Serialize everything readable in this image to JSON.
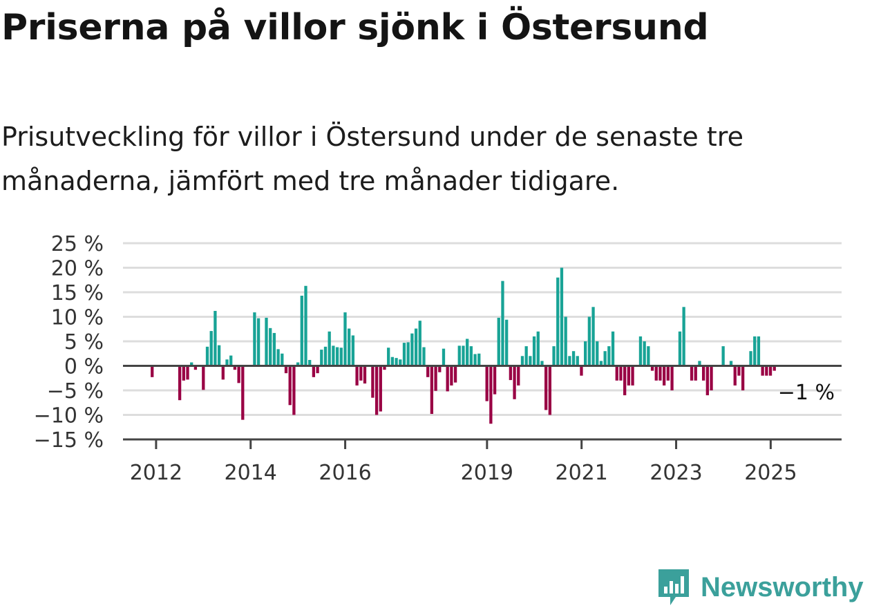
{
  "title": "Priserna på villor sjönk i Östersund",
  "subtitle": "Prisutveckling för villor i Östersund under de senaste tre månaderna, jämfört med tre månader tidigare.",
  "brand": {
    "name": "Newsworthy",
    "logo_icon": "newsworthy-bar-chart-logo-icon"
  },
  "colors": {
    "positive": "#18a396",
    "negative": "#990044",
    "grid": "#dddddd",
    "zero_line": "#444444",
    "brand": "#3ba09b"
  },
  "chart_data": {
    "type": "bar",
    "title": "",
    "xlabel": "",
    "ylabel": "",
    "ylim": [
      -15,
      25
    ],
    "yticks": [
      25,
      20,
      15,
      10,
      5,
      0,
      -5,
      -10,
      -15
    ],
    "ytick_labels": [
      "25 %",
      "20 %",
      "15 %",
      "10 %",
      "5 %",
      "0 %",
      "−5 %",
      "−10 %",
      "−15 %"
    ],
    "xticks": [
      {
        "x": 2012.0,
        "label": "2012"
      },
      {
        "x": 2014.0,
        "label": "2014"
      },
      {
        "x": 2016.0,
        "label": "2016"
      },
      {
        "x": 2019.0,
        "label": "2019"
      },
      {
        "x": 2021.0,
        "label": "2021"
      },
      {
        "x": 2023.0,
        "label": "2023"
      },
      {
        "x": 2025.0,
        "label": "2025"
      }
    ],
    "grid": true,
    "x_start": 2011.3,
    "x_end": 2026.5,
    "bar_start": 2011.917,
    "bar_step": 0.0833,
    "values": [
      -2.3,
      0,
      0,
      0,
      0,
      0,
      0,
      -7,
      -3,
      -2.8,
      0.7,
      -0.8,
      0,
      -4.9,
      3.9,
      7.1,
      11.2,
      4.2,
      -2.8,
      1.3,
      2.1,
      -0.8,
      -3.5,
      -11,
      0,
      0,
      10.9,
      9.7,
      0,
      9.8,
      7.7,
      6.7,
      3.4,
      2.5,
      -1.5,
      -8,
      -10,
      0.7,
      14.3,
      16.3,
      1.2,
      -2.3,
      -1.5,
      3.3,
      3.9,
      7,
      4.1,
      3.8,
      3.7,
      10.9,
      7.6,
      6.2,
      -4,
      -3,
      -3.6,
      0,
      -6.5,
      -10,
      -9.3,
      -0.8,
      3.7,
      1.8,
      1.6,
      1.3,
      4.7,
      4.8,
      6.6,
      7.6,
      9.2,
      3.8,
      -2.3,
      -9.8,
      -5.1,
      -1.3,
      3.5,
      -5.2,
      -4,
      -3.4,
      4.1,
      4.1,
      5.5,
      4,
      2.4,
      2.5,
      0,
      -7.2,
      -11.8,
      -5.8,
      9.8,
      17.3,
      9.4,
      -2.9,
      -6.8,
      -4,
      2,
      4,
      2,
      6,
      7,
      1,
      -9,
      -10,
      4,
      18,
      20,
      10,
      2,
      3,
      2,
      -2,
      5,
      10,
      12,
      5,
      1,
      3,
      4,
      7,
      -3,
      -3,
      -6,
      -4,
      -4,
      0,
      6,
      5,
      4,
      -1,
      -3,
      -3,
      -4,
      -3,
      -5,
      0,
      7,
      12,
      0,
      -3,
      -3,
      1,
      -3,
      -6,
      -5,
      0,
      0,
      4,
      0,
      1,
      -4,
      -2,
      -5,
      0,
      3,
      6,
      6,
      -2,
      -2,
      -2,
      -1
    ],
    "annotations": [
      {
        "text": "−1 %",
        "value": -1
      }
    ]
  }
}
